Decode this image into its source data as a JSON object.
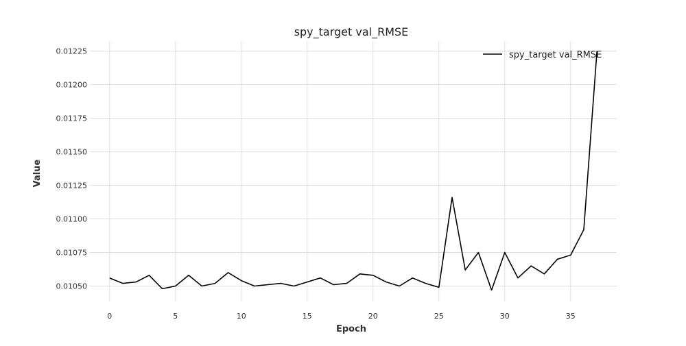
{
  "chart_data": {
    "type": "line",
    "title": "spy_target val_RMSE",
    "xlabel": "Epoch",
    "ylabel": "Value",
    "xlim": [
      -1.5,
      38.5
    ],
    "ylim": [
      0.010385,
      0.012325
    ],
    "x_ticks": [
      0,
      5,
      10,
      15,
      20,
      25,
      30,
      35
    ],
    "x_tick_labels": [
      "0",
      "5",
      "10",
      "15",
      "20",
      "25",
      "30",
      "35"
    ],
    "y_ticks": [
      0.0105,
      0.01075,
      0.011,
      0.01125,
      0.0115,
      0.01175,
      0.012,
      0.01225
    ],
    "y_tick_labels": [
      "0.01050",
      "0.01075",
      "0.01100",
      "0.01125",
      "0.01150",
      "0.01175",
      "0.01200",
      "0.01225"
    ],
    "grid": true,
    "legend_position": "top-right",
    "series": [
      {
        "name": "spy_target val_RMSE",
        "color": "#000000",
        "x": [
          0,
          1,
          2,
          3,
          4,
          5,
          6,
          7,
          8,
          9,
          10,
          11,
          12,
          13,
          14,
          15,
          16,
          17,
          18,
          19,
          20,
          21,
          22,
          23,
          24,
          25,
          26,
          27,
          28,
          29,
          30,
          31,
          32,
          33,
          34,
          35,
          36,
          37
        ],
        "y": [
          0.01056,
          0.01052,
          0.01053,
          0.01058,
          0.01048,
          0.0105,
          0.01058,
          0.0105,
          0.01052,
          0.0106,
          0.01054,
          0.0105,
          0.01051,
          0.01052,
          0.0105,
          0.01053,
          0.01056,
          0.01051,
          0.01052,
          0.01059,
          0.01058,
          0.01053,
          0.0105,
          0.01056,
          0.01052,
          0.01049,
          0.01116,
          0.01062,
          0.01075,
          0.01047,
          0.01075,
          0.01056,
          0.01065,
          0.01059,
          0.0107,
          0.01073,
          0.01092,
          0.01225
        ]
      }
    ]
  }
}
